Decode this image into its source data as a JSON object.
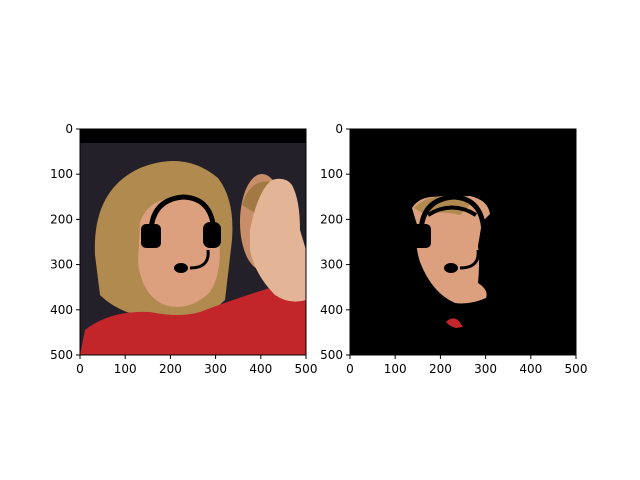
{
  "figure": {
    "background": "#ffffff"
  },
  "chart_data": [
    {
      "type": "image",
      "name": "left-panel",
      "xlim": [
        0,
        500
      ],
      "ylim": [
        500,
        0
      ],
      "xticks": [
        0,
        100,
        200,
        300,
        400,
        500
      ],
      "yticks": [
        0,
        100,
        200,
        300,
        400,
        500
      ],
      "xtick_labels": [
        "0",
        "100",
        "200",
        "300",
        "400",
        "500"
      ],
      "ytick_labels": [
        "0",
        "100",
        "200",
        "300",
        "400",
        "500"
      ],
      "content": "photo-with-headset-overlay"
    },
    {
      "type": "image",
      "name": "right-panel",
      "xlim": [
        0,
        500
      ],
      "ylim": [
        500,
        0
      ],
      "xticks": [
        0,
        100,
        200,
        300,
        400,
        500
      ],
      "yticks": [
        0,
        100,
        200,
        300,
        400,
        500
      ],
      "xtick_labels": [
        "0",
        "100",
        "200",
        "300",
        "400",
        "500"
      ],
      "ytick_labels": [
        "0",
        "100",
        "200",
        "300",
        "400",
        "500"
      ],
      "content": "masked-face-with-headset-overlay"
    }
  ],
  "colors": {
    "photo_bg": "#24202a",
    "top_band": "#000000",
    "hair": "#b08a4e",
    "skin": "#dca07e",
    "jacket": "#c2262b",
    "hand": "#e3b496",
    "headset": "#000000",
    "mask_bg": "#000000"
  }
}
